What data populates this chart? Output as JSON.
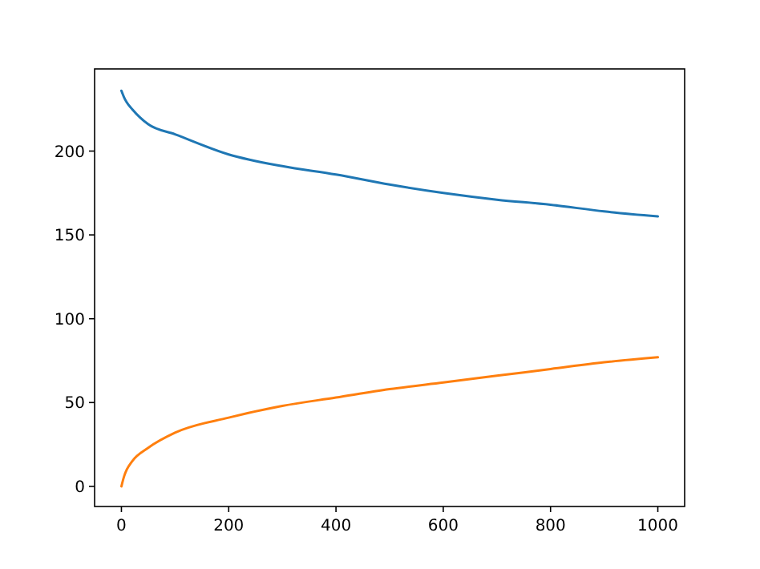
{
  "chart_data": {
    "type": "line",
    "x": [
      0,
      5,
      10,
      20,
      50,
      100,
      200,
      300,
      400,
      500,
      600,
      700,
      800,
      900,
      1000
    ],
    "xlim": [
      -50,
      1050
    ],
    "ylim": [
      -12,
      249
    ],
    "xticks": [
      0,
      200,
      400,
      600,
      800,
      1000
    ],
    "yticks": [
      0,
      50,
      100,
      150,
      200
    ],
    "grid": false,
    "series": [
      {
        "color": "#1f77b4",
        "values": [
          236,
          232,
          229,
          225,
          216,
          210,
          198,
          191,
          186,
          180,
          175,
          171,
          168,
          164,
          161
        ]
      },
      {
        "color": "#ff7f0e",
        "values": [
          0,
          6,
          10,
          15,
          23,
          32,
          41,
          48,
          53,
          58,
          62,
          66,
          70,
          74,
          77
        ]
      }
    ]
  }
}
